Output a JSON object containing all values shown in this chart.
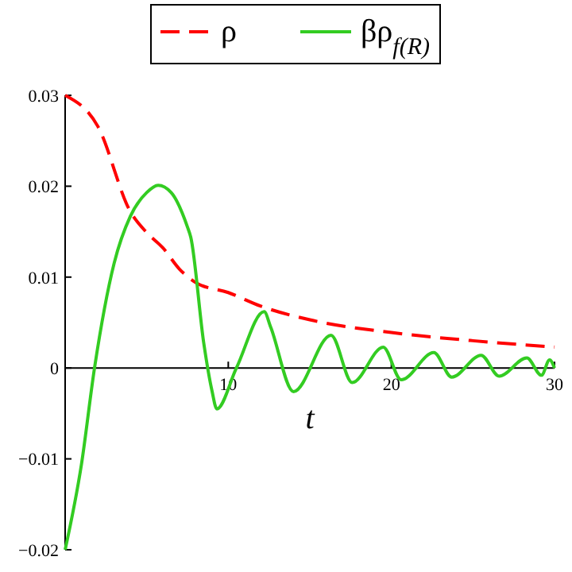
{
  "chart_data": {
    "type": "line",
    "xlabel": "t",
    "xlim": [
      0,
      30
    ],
    "ylim": [
      -0.02,
      0.03
    ],
    "xticks": [
      10,
      20,
      30
    ],
    "yticks": [
      -0.02,
      -0.01,
      0,
      0.01,
      0.02,
      0.03
    ],
    "legend": "top",
    "grid": false,
    "series": [
      {
        "name": "ρ",
        "color": "#ff0000",
        "line_style": "dashed",
        "x": [
          0,
          2,
          4,
          5,
          6,
          7,
          8,
          10,
          12,
          15,
          20,
          25,
          30
        ],
        "values": [
          0.03,
          0.0266,
          0.0172,
          0.0149,
          0.0132,
          0.0109,
          0.0094,
          0.0083,
          0.0068,
          0.0053,
          0.0039,
          0.003,
          0.0023
        ]
      },
      {
        "name": "βρ$_{f(R)}$",
        "color": "#33cc22",
        "line_style": "solid",
        "x": [
          0,
          1,
          1.8,
          3,
          4,
          5,
          5.7,
          6.5,
          7.5,
          7.7,
          8.5,
          9,
          9.3,
          10.5,
          12.2,
          12.6,
          14,
          16.3,
          17.6,
          19.5,
          20.6,
          22.6,
          23.7,
          25.5,
          26.6,
          28.3,
          29.2,
          29.7,
          30
        ],
        "values": [
          -0.02,
          -0.0106,
          0,
          0.0115,
          0.0167,
          0.0193,
          0.0201,
          0.0193,
          0.0155,
          0.0144,
          0.0027,
          -0.0025,
          -0.0045,
          0,
          0.0062,
          0.0045,
          -0.0026,
          0.0036,
          -0.0016,
          0.0023,
          -0.0013,
          0.0017,
          -0.001,
          0.0014,
          -0.0009,
          0.0011,
          -0.0008,
          0.0009,
          0
        ]
      }
    ]
  }
}
